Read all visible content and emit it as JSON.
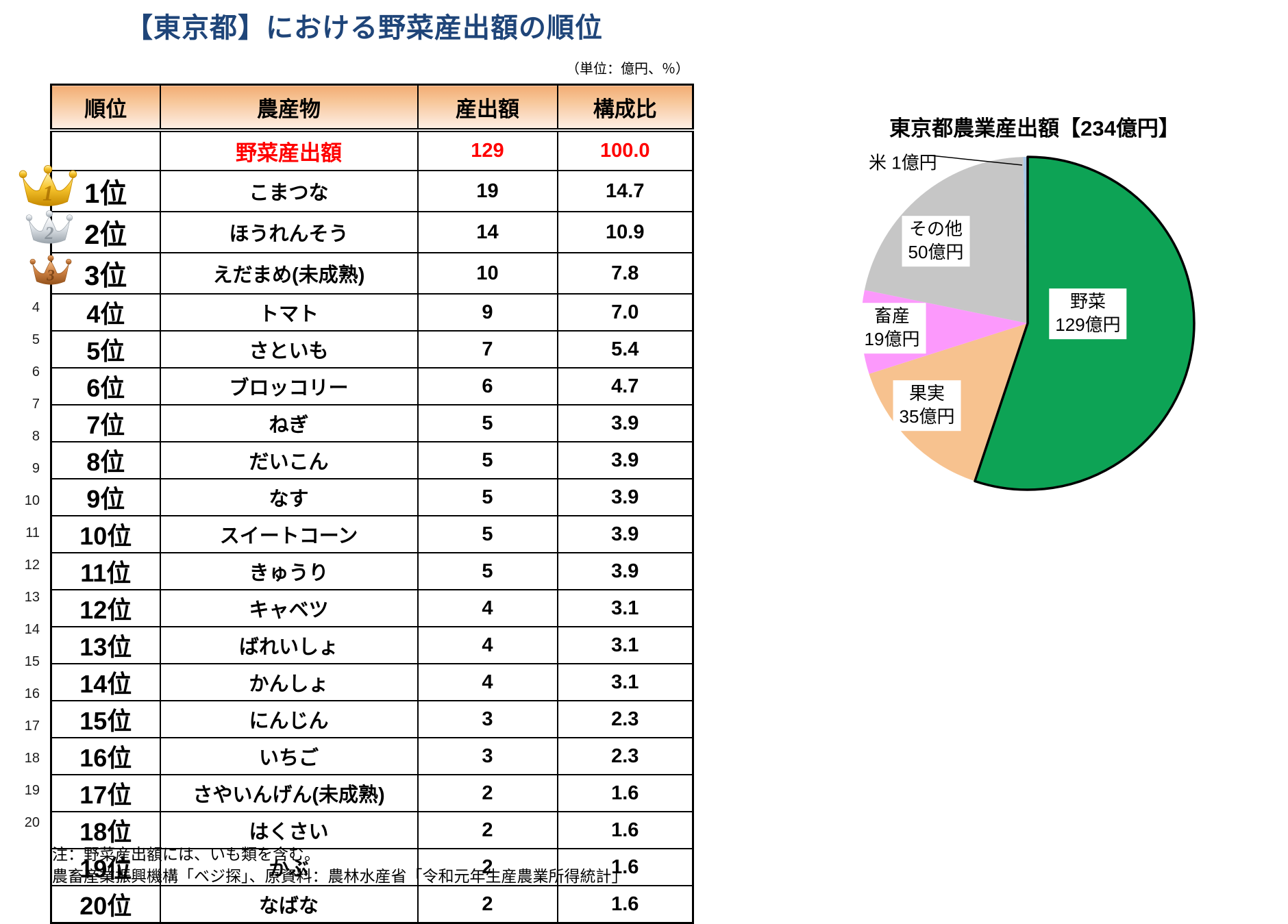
{
  "page_title": "【東京都】における野菜産出額の順位",
  "unit_note": "（単位：億円、％）",
  "table": {
    "headers": [
      "順位",
      "農産物",
      "産出額",
      "構成比"
    ],
    "total_row": {
      "rank": "",
      "name": "野菜産出額",
      "value": "129",
      "share": "100.0"
    },
    "rows": [
      {
        "num": "1",
        "rank": "1位",
        "name": "こまつな",
        "value": "19",
        "share": "14.7",
        "medal": "gold"
      },
      {
        "num": "2",
        "rank": "2位",
        "name": "ほうれんそう",
        "value": "14",
        "share": "10.9",
        "medal": "silver"
      },
      {
        "num": "3",
        "rank": "3位",
        "name": "えだまめ(未成熟)",
        "value": "10",
        "share": "7.8",
        "medal": "bronze"
      },
      {
        "num": "4",
        "rank": "4位",
        "name": "トマト",
        "value": "9",
        "share": "7.0"
      },
      {
        "num": "5",
        "rank": "5位",
        "name": "さといも",
        "value": "7",
        "share": "5.4"
      },
      {
        "num": "6",
        "rank": "6位",
        "name": "ブロッコリー",
        "value": "6",
        "share": "4.7"
      },
      {
        "num": "7",
        "rank": "7位",
        "name": "ねぎ",
        "value": "5",
        "share": "3.9"
      },
      {
        "num": "8",
        "rank": "8位",
        "name": "だいこん",
        "value": "5",
        "share": "3.9"
      },
      {
        "num": "9",
        "rank": "9位",
        "name": "なす",
        "value": "5",
        "share": "3.9"
      },
      {
        "num": "10",
        "rank": "10位",
        "name": "スイートコーン",
        "value": "5",
        "share": "3.9"
      },
      {
        "num": "11",
        "rank": "11位",
        "name": "きゅうり",
        "value": "5",
        "share": "3.9"
      },
      {
        "num": "12",
        "rank": "12位",
        "name": "キャベツ",
        "value": "4",
        "share": "3.1"
      },
      {
        "num": "13",
        "rank": "13位",
        "name": "ばれいしょ",
        "value": "4",
        "share": "3.1"
      },
      {
        "num": "14",
        "rank": "14位",
        "name": "かんしょ",
        "value": "4",
        "share": "3.1"
      },
      {
        "num": "15",
        "rank": "15位",
        "name": "にんじん",
        "value": "3",
        "share": "2.3"
      },
      {
        "num": "16",
        "rank": "16位",
        "name": "いちご",
        "value": "3",
        "share": "2.3"
      },
      {
        "num": "17",
        "rank": "17位",
        "name": "さやいんげん(未成熟)",
        "value": "2",
        "share": "1.6"
      },
      {
        "num": "18",
        "rank": "18位",
        "name": "はくさい",
        "value": "2",
        "share": "1.6"
      },
      {
        "num": "19",
        "rank": "19位",
        "name": "かぶ",
        "value": "2",
        "share": "1.6"
      },
      {
        "num": "20",
        "rank": "20位",
        "name": "なばな",
        "value": "2",
        "share": "1.6"
      }
    ]
  },
  "notes": [
    "注：野菜産出額には、いも類を含む。",
    "農畜産業振興機構「ベジ探」、原資料：農林水産省「令和元年生産農業所得統計」"
  ],
  "chart_data": {
    "type": "pie",
    "title": "東京都農業産出額【234億円】",
    "total": 234,
    "unit": "億円",
    "direction": "clockwise",
    "start_angle_deg": 0,
    "legend_position": "inside-labels",
    "slices": [
      {
        "label": "野菜",
        "value": 129,
        "display": "野菜\n129億円",
        "color": "#0DA355",
        "outlined": true
      },
      {
        "label": "果実",
        "value": 35,
        "display": "果実\n35億円",
        "color": "#F7C28F"
      },
      {
        "label": "畜産",
        "value": 19,
        "display": "畜産\n19億円",
        "color": "#FC99FC"
      },
      {
        "label": "その他",
        "value": 50,
        "display": "その他\n50億円",
        "color": "#C6C6C6"
      },
      {
        "label": "米",
        "value": 1,
        "display": "米 1億円",
        "color": "#A8C8E8",
        "callout": true
      }
    ]
  },
  "colors": {
    "title_blue": "#1F4579",
    "accent_red": "#FF0000",
    "header_gradient_top": "#F2AC74",
    "header_gradient_bottom": "#FDF0E6"
  }
}
